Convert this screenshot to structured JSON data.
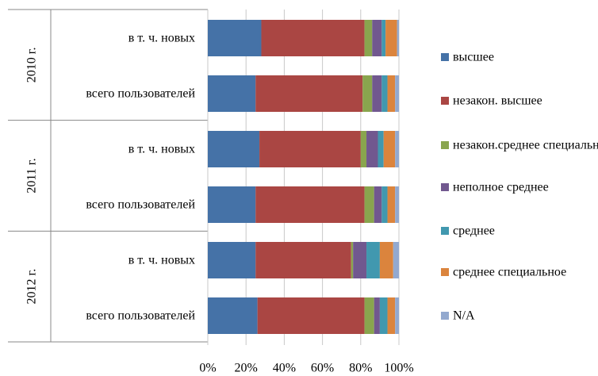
{
  "chart_data": {
    "type": "bar",
    "orientation": "horizontal",
    "stacked": true,
    "normalized": true,
    "xlim": [
      0,
      100
    ],
    "x_ticks": [
      "0%",
      "20%",
      "40%",
      "60%",
      "80%",
      "100%"
    ],
    "grid": true,
    "legend_position": "right",
    "groups": [
      {
        "label": "2010 г.",
        "categories": [
          "в т. ч. новых",
          "всего пользователей"
        ]
      },
      {
        "label": "2011 г.",
        "categories": [
          "в т. ч. новых",
          "всего пользователей"
        ]
      },
      {
        "label": "2012 г.",
        "categories": [
          "в т. ч. новых",
          "всего пользователей"
        ]
      }
    ],
    "series": [
      {
        "name": "высшее",
        "color": "#4572A7",
        "values": [
          28,
          25,
          27,
          25,
          25,
          26
        ]
      },
      {
        "name": "незакон. высшее",
        "color": "#AA4643",
        "values": [
          54,
          56,
          53,
          57,
          50,
          56
        ]
      },
      {
        "name": "незакон.среднее специальное",
        "color": "#89A54E",
        "values": [
          4,
          5,
          3,
          5,
          1,
          5
        ]
      },
      {
        "name": "неполное среднее",
        "color": "#71588F",
        "values": [
          5,
          5,
          6,
          4,
          7,
          3
        ]
      },
      {
        "name": "среднее",
        "color": "#4198AF",
        "values": [
          2,
          3,
          3,
          3,
          7,
          4
        ]
      },
      {
        "name": "среднее специальное",
        "color": "#DB843D",
        "values": [
          6,
          4,
          6,
          4,
          7,
          4
        ]
      },
      {
        "name": "N/A",
        "color": "#93A9CF",
        "values": [
          1,
          2,
          2,
          2,
          3,
          2
        ]
      }
    ]
  }
}
